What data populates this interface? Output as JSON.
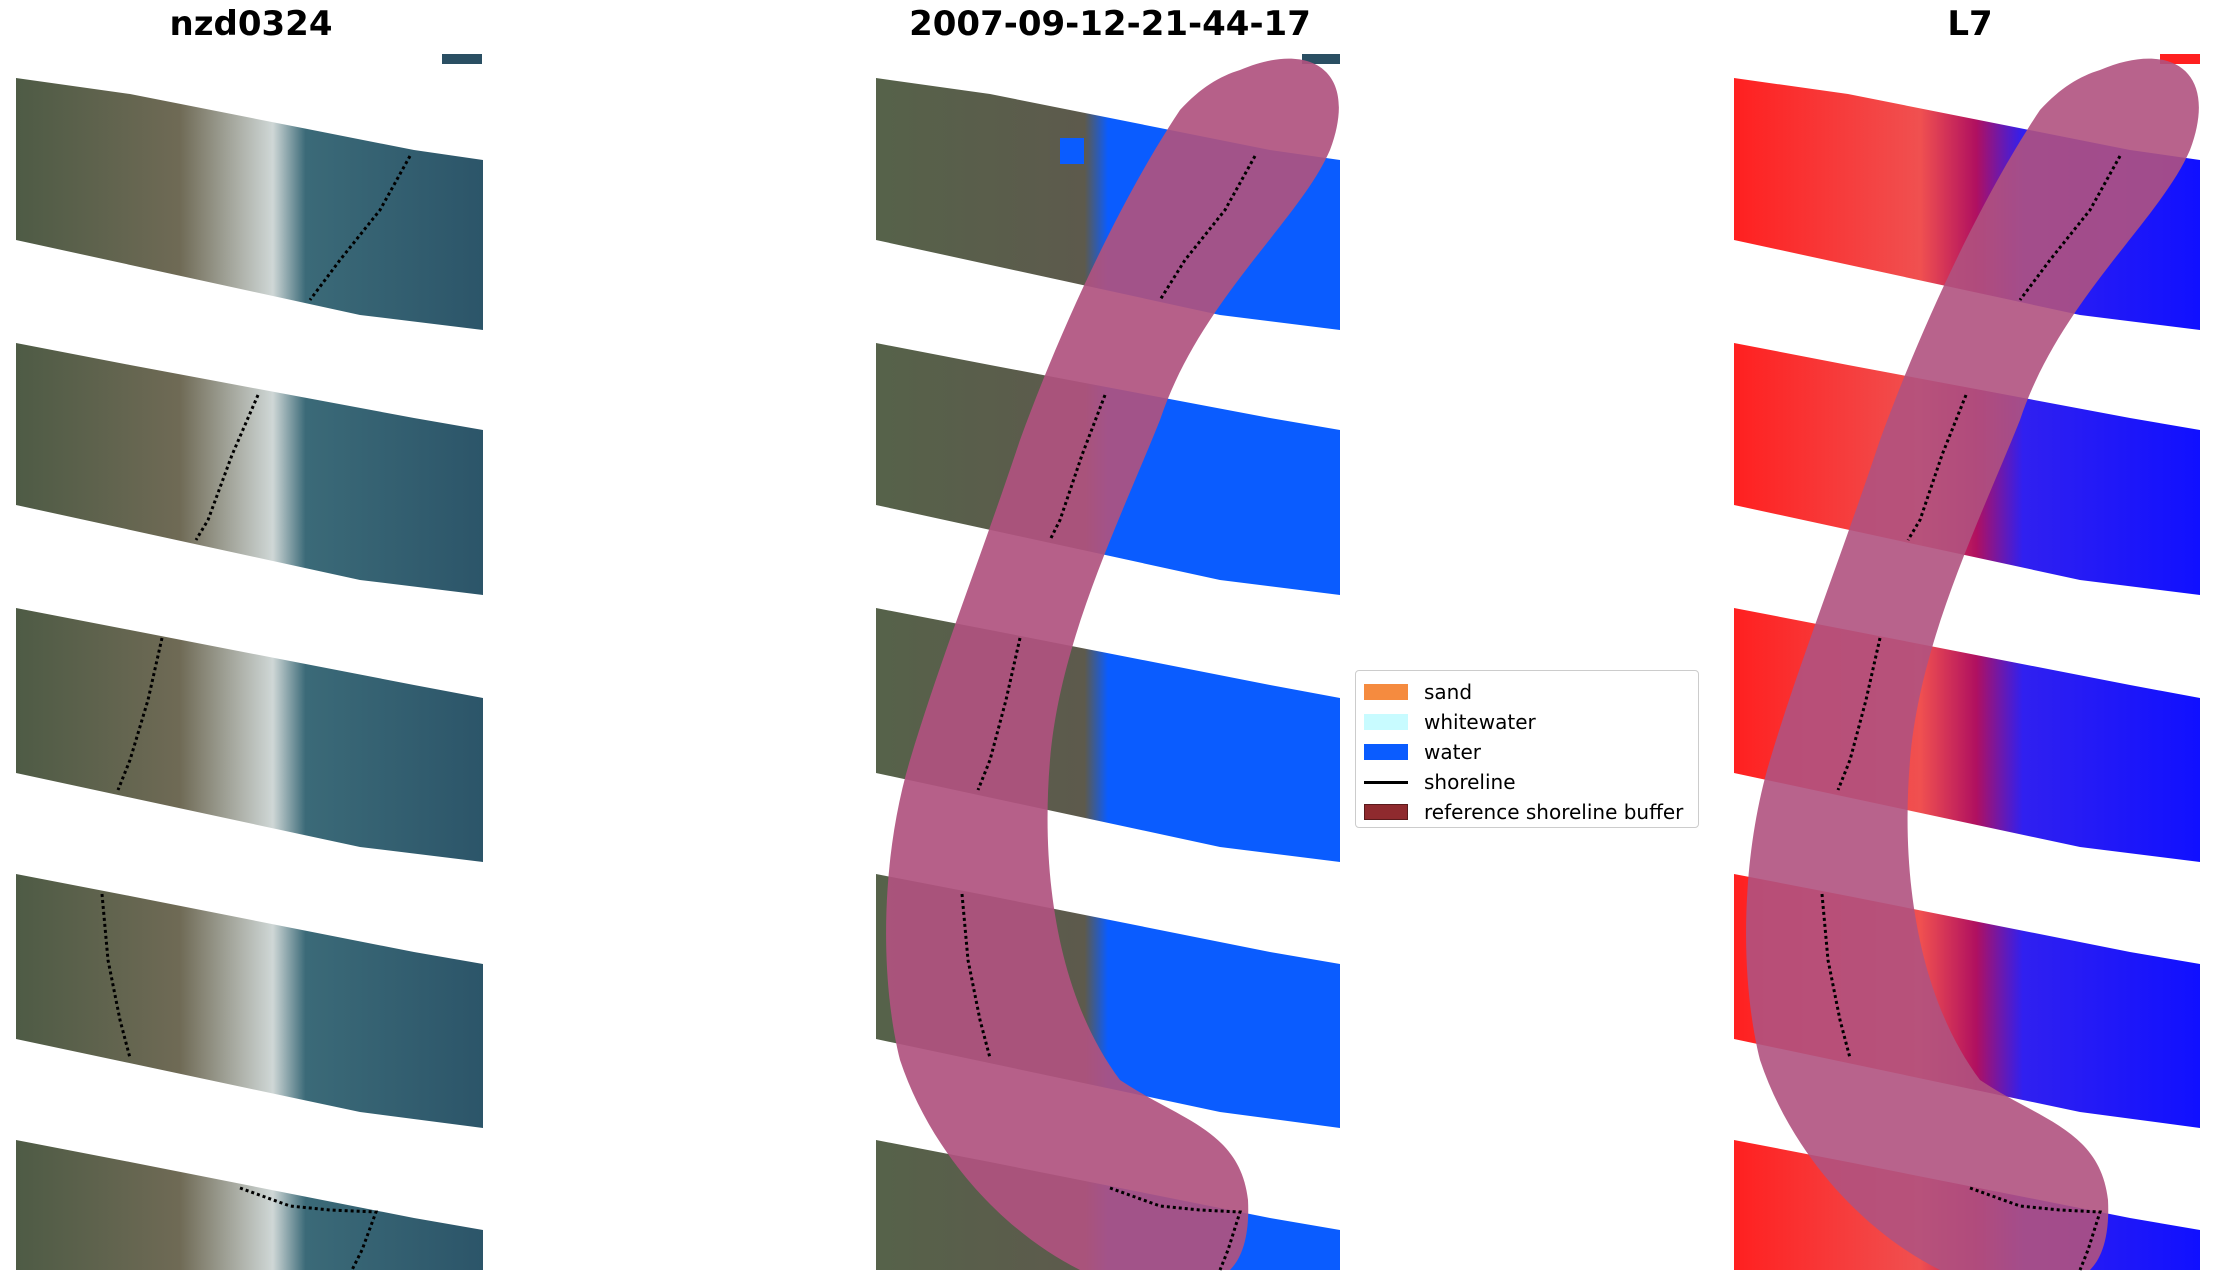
{
  "titles": {
    "left": "nzd0324",
    "center": "2007-09-12-21-44-17",
    "right": "L7"
  },
  "legend": {
    "items": [
      {
        "label": "sand",
        "color": "#f58b3f",
        "kind": "patch"
      },
      {
        "label": "whitewater",
        "color": "#c8fbff",
        "kind": "patch"
      },
      {
        "label": "water",
        "color": "#0a5cff",
        "kind": "patch"
      },
      {
        "label": "shoreline",
        "color": "#000000",
        "kind": "line"
      },
      {
        "label": "reference shoreline buffer",
        "color": "#8f2a2e",
        "kind": "patch"
      }
    ]
  },
  "colors": {
    "land_rgb": "#56624a",
    "sea_rgb": "#2f5a6c",
    "water_class": "#0a5cff",
    "buffer_overlay": "#b0527f",
    "index_red": "#ff1a1a",
    "index_blue": "#1a1aff"
  }
}
